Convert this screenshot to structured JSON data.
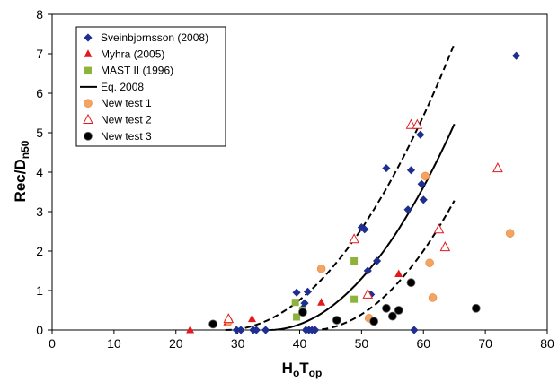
{
  "chart_data": {
    "type": "scatter",
    "xlabel_main": "H",
    "xlabel_sub1": "o",
    "xlabel_mid": "T",
    "xlabel_sub2": "op",
    "ylabel_main": "Rec/D",
    "ylabel_sub": "n50",
    "xlim": [
      0,
      80
    ],
    "ylim": [
      0,
      8
    ],
    "xticks": [
      "0",
      "10",
      "20",
      "30",
      "40",
      "50",
      "60",
      "70",
      "80"
    ],
    "yticks": [
      "0",
      "1",
      "2",
      "3",
      "4",
      "5",
      "6",
      "7",
      "8"
    ],
    "grid": false,
    "legend_position": "top-left",
    "series": [
      {
        "name": "Sveinbjornsson (2008)",
        "marker": "diamond",
        "color": "#1f2f8f",
        "points": [
          [
            29.8,
            0
          ],
          [
            30.5,
            0
          ],
          [
            32.5,
            0
          ],
          [
            33,
            0
          ],
          [
            34.5,
            0
          ],
          [
            39.5,
            0.95
          ],
          [
            40.5,
            0.55
          ],
          [
            40.8,
            0.68
          ],
          [
            41,
            0
          ],
          [
            41.3,
            0.97
          ],
          [
            41.5,
            0
          ],
          [
            42,
            0
          ],
          [
            42.5,
            0
          ],
          [
            50,
            2.6
          ],
          [
            50.5,
            2.55
          ],
          [
            51,
            1.5
          ],
          [
            51.5,
            0.9
          ],
          [
            52.5,
            1.75
          ],
          [
            54,
            4.1
          ],
          [
            57.5,
            3.05
          ],
          [
            58,
            4.05
          ],
          [
            58.5,
            0
          ],
          [
            59.5,
            4.95
          ],
          [
            59.7,
            3.7
          ],
          [
            60,
            3.3
          ],
          [
            75,
            6.95
          ]
        ]
      },
      {
        "name": "Myhra (2005)",
        "marker": "triangle-filled",
        "color": "#e31a1c",
        "points": [
          [
            22.3,
            0
          ],
          [
            28.3,
            0.2
          ],
          [
            32.3,
            0.28
          ],
          [
            43.5,
            0.7
          ],
          [
            56,
            1.42
          ]
        ]
      },
      {
        "name": "MAST II (1996)",
        "marker": "square",
        "color": "#8db33a",
        "points": [
          [
            39.3,
            0.7
          ],
          [
            39.5,
            0.33
          ],
          [
            40.5,
            0.5
          ],
          [
            48.8,
            1.75
          ],
          [
            48.8,
            0.78
          ]
        ]
      },
      {
        "name": "Eq. 2008",
        "marker": "line",
        "color": "#000000",
        "points": []
      },
      {
        "name": "New test 1",
        "marker": "circle",
        "color": "#f4a460",
        "points": [
          [
            28.5,
            0.22
          ],
          [
            43.5,
            1.55
          ],
          [
            51.2,
            0.3
          ],
          [
            60.3,
            3.9
          ],
          [
            61,
            1.7
          ],
          [
            61.5,
            0.82
          ],
          [
            74,
            2.45
          ]
        ]
      },
      {
        "name": "New test 2",
        "marker": "triangle-open",
        "color": "#e31a1c",
        "points": [
          [
            28.5,
            0.28
          ],
          [
            48.8,
            2.3
          ],
          [
            51,
            0.9
          ],
          [
            58,
            5.2
          ],
          [
            59,
            5.2
          ],
          [
            62.5,
            2.55
          ],
          [
            63.5,
            2.1
          ],
          [
            72,
            4.1
          ]
        ]
      },
      {
        "name": "New test 3",
        "marker": "circle-black",
        "color": "#000000",
        "points": [
          [
            26,
            0.15
          ],
          [
            40.5,
            0.45
          ],
          [
            46,
            0.25
          ],
          [
            52,
            0.22
          ],
          [
            54,
            0.55
          ],
          [
            55,
            0.35
          ],
          [
            56,
            0.5
          ],
          [
            58,
            1.2
          ],
          [
            68.5,
            0.55
          ]
        ]
      }
    ],
    "curves": [
      {
        "role": "upper-bound",
        "style": "dashed",
        "x0": 28,
        "x1": 65,
        "k": 0.0053
      },
      {
        "role": "fit",
        "style": "solid",
        "x0": 35,
        "x1": 65,
        "k": 0.0058
      },
      {
        "role": "lower-bound",
        "style": "dashed",
        "x0": 42,
        "x1": 65,
        "k": 0.0062
      }
    ]
  }
}
